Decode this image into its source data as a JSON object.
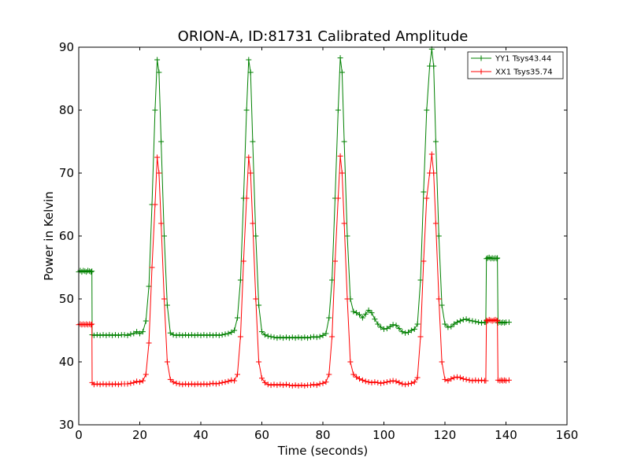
{
  "chart_data": {
    "type": "line",
    "title": "ORION-A, ID:81731 Calibrated Amplitude",
    "xlabel": "Time (seconds)",
    "ylabel": "Power in Kelvin",
    "xlim": [
      0,
      160
    ],
    "ylim": [
      30,
      90
    ],
    "xticks": [
      0,
      20,
      40,
      60,
      80,
      100,
      120,
      140,
      160
    ],
    "yticks": [
      30,
      40,
      50,
      60,
      70,
      80,
      90
    ],
    "grid": false,
    "legend_position": "top-right",
    "colors": {
      "YY1": "#008000",
      "XX1": "#ff0000"
    },
    "series": [
      {
        "name": "YY1 Tsys43.44",
        "color": "#008000",
        "marker": "plus",
        "points": [
          [
            0,
            54.3
          ],
          [
            0.5,
            54.5
          ],
          [
            1,
            54.3
          ],
          [
            1.5,
            54.5
          ],
          [
            2,
            54.4
          ],
          [
            2.5,
            54.3
          ],
          [
            3,
            54.5
          ],
          [
            3.5,
            54.4
          ],
          [
            4,
            54.3
          ],
          [
            4.3,
            54.4
          ],
          [
            4.4,
            44.3
          ],
          [
            5,
            44.2
          ],
          [
            6,
            44.3
          ],
          [
            7,
            44.2
          ],
          [
            8,
            44.3
          ],
          [
            9,
            44.2
          ],
          [
            10,
            44.3
          ],
          [
            11,
            44.2
          ],
          [
            12,
            44.3
          ],
          [
            13,
            44.2
          ],
          [
            14,
            44.3
          ],
          [
            15,
            44.3
          ],
          [
            16,
            44.2
          ],
          [
            17,
            44.4
          ],
          [
            18,
            44.5
          ],
          [
            19,
            44.8
          ],
          [
            20,
            44.5
          ],
          [
            21,
            44.8
          ],
          [
            22,
            46.5
          ],
          [
            23,
            52
          ],
          [
            24,
            65
          ],
          [
            25,
            80
          ],
          [
            25.7,
            88
          ],
          [
            26.3,
            86
          ],
          [
            27,
            75
          ],
          [
            28,
            60
          ],
          [
            29,
            49
          ],
          [
            30,
            44.6
          ],
          [
            31,
            44.3
          ],
          [
            32,
            44.2
          ],
          [
            33,
            44.3
          ],
          [
            34,
            44.2
          ],
          [
            35,
            44.3
          ],
          [
            36,
            44.2
          ],
          [
            37,
            44.3
          ],
          [
            38,
            44.2
          ],
          [
            39,
            44.3
          ],
          [
            40,
            44.2
          ],
          [
            41,
            44.3
          ],
          [
            42,
            44.2
          ],
          [
            43,
            44.3
          ],
          [
            44,
            44.2
          ],
          [
            45,
            44.3
          ],
          [
            46,
            44.2
          ],
          [
            47,
            44.3
          ],
          [
            48,
            44.4
          ],
          [
            49,
            44.5
          ],
          [
            50,
            44.7
          ],
          [
            51,
            45
          ],
          [
            52,
            47
          ],
          [
            53,
            53
          ],
          [
            54,
            66
          ],
          [
            55,
            80
          ],
          [
            55.7,
            88
          ],
          [
            56.3,
            86
          ],
          [
            57,
            75
          ],
          [
            58,
            60
          ],
          [
            59,
            49
          ],
          [
            60,
            44.8
          ],
          [
            61,
            44.3
          ],
          [
            62,
            44.1
          ],
          [
            63,
            44
          ],
          [
            64,
            43.9
          ],
          [
            65,
            43.8
          ],
          [
            66,
            43.9
          ],
          [
            67,
            43.8
          ],
          [
            68,
            43.9
          ],
          [
            69,
            43.8
          ],
          [
            70,
            43.9
          ],
          [
            71,
            43.8
          ],
          [
            72,
            43.9
          ],
          [
            73,
            43.8
          ],
          [
            74,
            43.9
          ],
          [
            75,
            43.8
          ],
          [
            76,
            43.9
          ],
          [
            77,
            44
          ],
          [
            78,
            43.9
          ],
          [
            79,
            44
          ],
          [
            80,
            44.2
          ],
          [
            81,
            44.5
          ],
          [
            82,
            47
          ],
          [
            83,
            53
          ],
          [
            84,
            66
          ],
          [
            85,
            80
          ],
          [
            85.7,
            88.3
          ],
          [
            86.3,
            86
          ],
          [
            87,
            75
          ],
          [
            88,
            60
          ],
          [
            89,
            50
          ],
          [
            90,
            48
          ],
          [
            91,
            47.8
          ],
          [
            92,
            47.5
          ],
          [
            93,
            47
          ],
          [
            94,
            47.6
          ],
          [
            95,
            48.2
          ],
          [
            96,
            47.8
          ],
          [
            97,
            46.8
          ],
          [
            98,
            46
          ],
          [
            99,
            45.5
          ],
          [
            100,
            45.2
          ],
          [
            101,
            45.3
          ],
          [
            102,
            45.6
          ],
          [
            103,
            45.9
          ],
          [
            104,
            45.8
          ],
          [
            105,
            45.3
          ],
          [
            106,
            44.8
          ],
          [
            107,
            44.6
          ],
          [
            108,
            44.7
          ],
          [
            109,
            45
          ],
          [
            110,
            45.2
          ],
          [
            111,
            46
          ],
          [
            112,
            53
          ],
          [
            113,
            67
          ],
          [
            114,
            80
          ],
          [
            115,
            87
          ],
          [
            115.7,
            89.7
          ],
          [
            116.3,
            87
          ],
          [
            117,
            75
          ],
          [
            118,
            60
          ],
          [
            119,
            49
          ],
          [
            120,
            46
          ],
          [
            121,
            45.5
          ],
          [
            122,
            45.6
          ],
          [
            123,
            46
          ],
          [
            124,
            46.3
          ],
          [
            125,
            46.5
          ],
          [
            126,
            46.7
          ],
          [
            127,
            46.8
          ],
          [
            128,
            46.6
          ],
          [
            129,
            46.5
          ],
          [
            130,
            46.4
          ],
          [
            131,
            46.3
          ],
          [
            132,
            46.2
          ],
          [
            133,
            46.3
          ],
          [
            133.4,
            46.3
          ],
          [
            133.6,
            56.4
          ],
          [
            134,
            56.5
          ],
          [
            134.5,
            56.6
          ],
          [
            135,
            56.4
          ],
          [
            135.5,
            56.5
          ],
          [
            136,
            56.4
          ],
          [
            136.5,
            56.5
          ],
          [
            137,
            56.4
          ],
          [
            137.2,
            56.5
          ],
          [
            137.4,
            46.2
          ],
          [
            138,
            46.3
          ],
          [
            138.5,
            46.2
          ],
          [
            139,
            46.3
          ],
          [
            139.5,
            46.2
          ],
          [
            140,
            46.3
          ],
          [
            141,
            46.3
          ]
        ]
      },
      {
        "name": "XX1 Tsys35.74",
        "color": "#ff0000",
        "marker": "plus",
        "points": [
          [
            0,
            45.9
          ],
          [
            0.5,
            46
          ],
          [
            1,
            45.9
          ],
          [
            1.5,
            46
          ],
          [
            2,
            45.9
          ],
          [
            2.5,
            46
          ],
          [
            3,
            45.9
          ],
          [
            3.5,
            46
          ],
          [
            4,
            45.9
          ],
          [
            4.3,
            46
          ],
          [
            4.4,
            36.7
          ],
          [
            5,
            36.4
          ],
          [
            6,
            36.5
          ],
          [
            7,
            36.4
          ],
          [
            8,
            36.5
          ],
          [
            9,
            36.4
          ],
          [
            10,
            36.5
          ],
          [
            11,
            36.4
          ],
          [
            12,
            36.5
          ],
          [
            13,
            36.4
          ],
          [
            14,
            36.5
          ],
          [
            15,
            36.5
          ],
          [
            16,
            36.5
          ],
          [
            17,
            36.6
          ],
          [
            18,
            36.7
          ],
          [
            19,
            36.9
          ],
          [
            20,
            36.8
          ],
          [
            21,
            37
          ],
          [
            22,
            38
          ],
          [
            23,
            43
          ],
          [
            24,
            55
          ],
          [
            25,
            65
          ],
          [
            25.7,
            72.5
          ],
          [
            26.3,
            70
          ],
          [
            27,
            62
          ],
          [
            28,
            50
          ],
          [
            29,
            40
          ],
          [
            30,
            37.2
          ],
          [
            31,
            36.8
          ],
          [
            32,
            36.6
          ],
          [
            33,
            36.5
          ],
          [
            34,
            36.4
          ],
          [
            35,
            36.5
          ],
          [
            36,
            36.4
          ],
          [
            37,
            36.5
          ],
          [
            38,
            36.4
          ],
          [
            39,
            36.5
          ],
          [
            40,
            36.4
          ],
          [
            41,
            36.5
          ],
          [
            42,
            36.4
          ],
          [
            43,
            36.5
          ],
          [
            44,
            36.6
          ],
          [
            45,
            36.5
          ],
          [
            46,
            36.6
          ],
          [
            47,
            36.7
          ],
          [
            48,
            36.8
          ],
          [
            49,
            36.9
          ],
          [
            50,
            37.1
          ],
          [
            51,
            37
          ],
          [
            52,
            38
          ],
          [
            53,
            44
          ],
          [
            54,
            56
          ],
          [
            55,
            66
          ],
          [
            55.7,
            72.5
          ],
          [
            56.3,
            70
          ],
          [
            57,
            62
          ],
          [
            58,
            50
          ],
          [
            59,
            40
          ],
          [
            60,
            37.4
          ],
          [
            61,
            36.7
          ],
          [
            62,
            36.4
          ],
          [
            63,
            36.3
          ],
          [
            64,
            36.4
          ],
          [
            65,
            36.3
          ],
          [
            66,
            36.4
          ],
          [
            67,
            36.3
          ],
          [
            68,
            36.4
          ],
          [
            69,
            36.3
          ],
          [
            70,
            36.2
          ],
          [
            71,
            36.3
          ],
          [
            72,
            36.2
          ],
          [
            73,
            36.3
          ],
          [
            74,
            36.2
          ],
          [
            75,
            36.3
          ],
          [
            76,
            36.3
          ],
          [
            77,
            36.4
          ],
          [
            78,
            36.3
          ],
          [
            79,
            36.5
          ],
          [
            80,
            36.6
          ],
          [
            81,
            36.8
          ],
          [
            82,
            38
          ],
          [
            83,
            44
          ],
          [
            84,
            56
          ],
          [
            85,
            66
          ],
          [
            85.7,
            72.7
          ],
          [
            86.3,
            70
          ],
          [
            87,
            62
          ],
          [
            88,
            50
          ],
          [
            89,
            40
          ],
          [
            90,
            38
          ],
          [
            91,
            37.6
          ],
          [
            92,
            37.3
          ],
          [
            93,
            37.1
          ],
          [
            94,
            36.9
          ],
          [
            95,
            36.8
          ],
          [
            96,
            36.7
          ],
          [
            97,
            36.8
          ],
          [
            98,
            36.7
          ],
          [
            99,
            36.6
          ],
          [
            100,
            36.7
          ],
          [
            101,
            36.8
          ],
          [
            102,
            36.9
          ],
          [
            103,
            37
          ],
          [
            104,
            36.9
          ],
          [
            105,
            36.7
          ],
          [
            106,
            36.5
          ],
          [
            107,
            36.4
          ],
          [
            108,
            36.5
          ],
          [
            109,
            36.6
          ],
          [
            110,
            36.8
          ],
          [
            111,
            37.5
          ],
          [
            112,
            44
          ],
          [
            113,
            56
          ],
          [
            114,
            66
          ],
          [
            115,
            70
          ],
          [
            115.7,
            73
          ],
          [
            116.3,
            70
          ],
          [
            117,
            62
          ],
          [
            118,
            50
          ],
          [
            119,
            40
          ],
          [
            120,
            37.2
          ],
          [
            121,
            37
          ],
          [
            122,
            37.3
          ],
          [
            123,
            37.5
          ],
          [
            124,
            37.6
          ],
          [
            125,
            37.5
          ],
          [
            126,
            37.3
          ],
          [
            127,
            37.2
          ],
          [
            128,
            37.1
          ],
          [
            129,
            37
          ],
          [
            130,
            37.1
          ],
          [
            131,
            37
          ],
          [
            132,
            37.1
          ],
          [
            133,
            37
          ],
          [
            133.4,
            37
          ],
          [
            133.6,
            46.6
          ],
          [
            134,
            46.5
          ],
          [
            134.5,
            46.7
          ],
          [
            135,
            46.6
          ],
          [
            135.5,
            46.5
          ],
          [
            136,
            46.6
          ],
          [
            136.5,
            46.7
          ],
          [
            137,
            46.6
          ],
          [
            137.2,
            46.5
          ],
          [
            137.4,
            37.1
          ],
          [
            138,
            37
          ],
          [
            138.5,
            37.1
          ],
          [
            139,
            37
          ],
          [
            139.5,
            37.1
          ],
          [
            140,
            37
          ],
          [
            141,
            37.1
          ]
        ]
      }
    ]
  }
}
